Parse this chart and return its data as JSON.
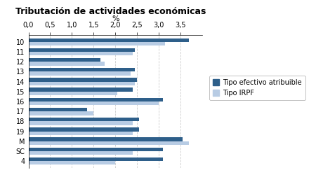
{
  "title": "Tributación de actividades económicas",
  "xlabel": "%",
  "categories": [
    "10",
    "11",
    "12",
    "13",
    "14",
    "15",
    "16",
    "17",
    "18",
    "19",
    "M",
    "SC",
    "4"
  ],
  "tipo_efectivo": [
    3.7,
    2.45,
    1.65,
    2.45,
    2.5,
    2.4,
    3.1,
    1.35,
    2.55,
    2.55,
    3.55,
    3.1,
    3.1
  ],
  "tipo_irpf": [
    3.15,
    2.4,
    1.75,
    2.35,
    2.45,
    2.05,
    3.0,
    1.5,
    2.4,
    2.4,
    3.7,
    2.4,
    2.0
  ],
  "xlim": [
    0,
    4.0
  ],
  "xticks": [
    0.0,
    0.5,
    1.0,
    1.5,
    2.0,
    2.5,
    3.0,
    3.5
  ],
  "xtick_labels": [
    "0,0",
    "0,5",
    "1,0",
    "1,5",
    "2,0",
    "2,5",
    "3,0",
    "3,5"
  ],
  "color_efectivo": "#2E5F8A",
  "color_irpf": "#B8CCE4",
  "legend_efectivo": "Tipo efectivo atribuible",
  "legend_irpf": "Tipo IRPF",
  "bar_height": 0.38,
  "background_color": "#FFFFFF"
}
